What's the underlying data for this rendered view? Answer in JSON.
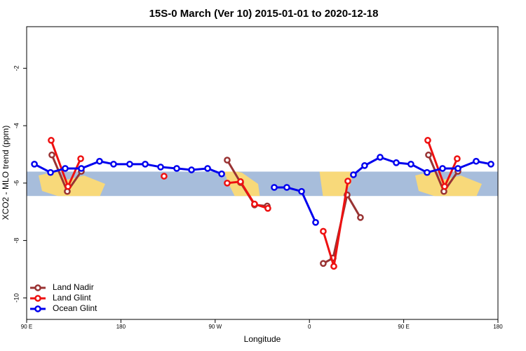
{
  "chart_data": {
    "type": "line",
    "title": "15S-0 March (Ver 10)   2015-01-01 to 2020-12-18",
    "xlabel": "Longitude",
    "ylabel": "XCO2 - MLO trend (ppm)",
    "xlim": [
      90,
      540
    ],
    "ylim": [
      -10.75,
      -0.55
    ],
    "xticks": [
      {
        "value": 90,
        "label": "90 E"
      },
      {
        "value": 180,
        "label": "180"
      },
      {
        "value": 270,
        "label": "90 W"
      },
      {
        "value": 360,
        "label": "0"
      },
      {
        "value": 450,
        "label": "90 E"
      },
      {
        "value": 540,
        "label": "180"
      }
    ],
    "yticks": [
      -2,
      -4,
      -6,
      -8,
      -10
    ],
    "band": [
      -5.6,
      -6.45
    ],
    "band_color": "#a7bddb",
    "legend": "lower left",
    "series": [
      {
        "name": "Land Nadir",
        "color": "#993333",
        "x": [
          114.1,
          128.8,
          142.2,
          null,
          281.5,
          294.2,
          307.6,
          319.7,
          null,
          373.2,
          382.6,
          396,
          408.7,
          null,
          473.7,
          488.4,
          501.8
        ],
        "values": [
          -5.02,
          -6.29,
          -5.59,
          null,
          -5.2,
          -5.98,
          -6.76,
          -6.8,
          null,
          -8.8,
          -8.61,
          -6.41,
          -7.2,
          null,
          -5.02,
          -6.29,
          -5.59
        ]
      },
      {
        "name": "Land Glint",
        "color": "#ee1111",
        "x": [
          113.4,
          129.5,
          141.6,
          null,
          221.2,
          null,
          281.5,
          294.2,
          307.6,
          320.3,
          null,
          373.2,
          383.3,
          396.7,
          null,
          473,
          489.1,
          501.1
        ],
        "values": [
          -4.51,
          -6.12,
          -5.15,
          null,
          -5.76,
          null,
          -6.0,
          -5.95,
          -6.73,
          -6.88,
          null,
          -7.68,
          -8.9,
          -5.93,
          null,
          -4.51,
          -6.12,
          -5.15
        ]
      },
      {
        "name": "Ocean Glint",
        "color": "#0000ee",
        "x": [
          97.4,
          112.8,
          126.8,
          142.2,
          159.6,
          173,
          188.4,
          203.2,
          217.9,
          233.3,
          247.4,
          262.8,
          276.2,
          null,
          326.4,
          338.4,
          352.5,
          365.9,
          null,
          402,
          412.7,
          427.5,
          442.9,
          456.9,
          472.3,
          487.1,
          501.8,
          519.2,
          533.3
        ],
        "values": [
          -5.34,
          -5.63,
          -5.49,
          -5.49,
          -5.24,
          -5.34,
          -5.34,
          -5.34,
          -5.44,
          -5.49,
          -5.54,
          -5.49,
          -5.68,
          null,
          -6.15,
          -6.15,
          -6.29,
          -7.37,
          null,
          -5.71,
          -5.39,
          -5.1,
          -5.29,
          -5.34,
          -5.63,
          -5.49,
          -5.49,
          -5.24,
          -5.34
        ]
      }
    ]
  }
}
